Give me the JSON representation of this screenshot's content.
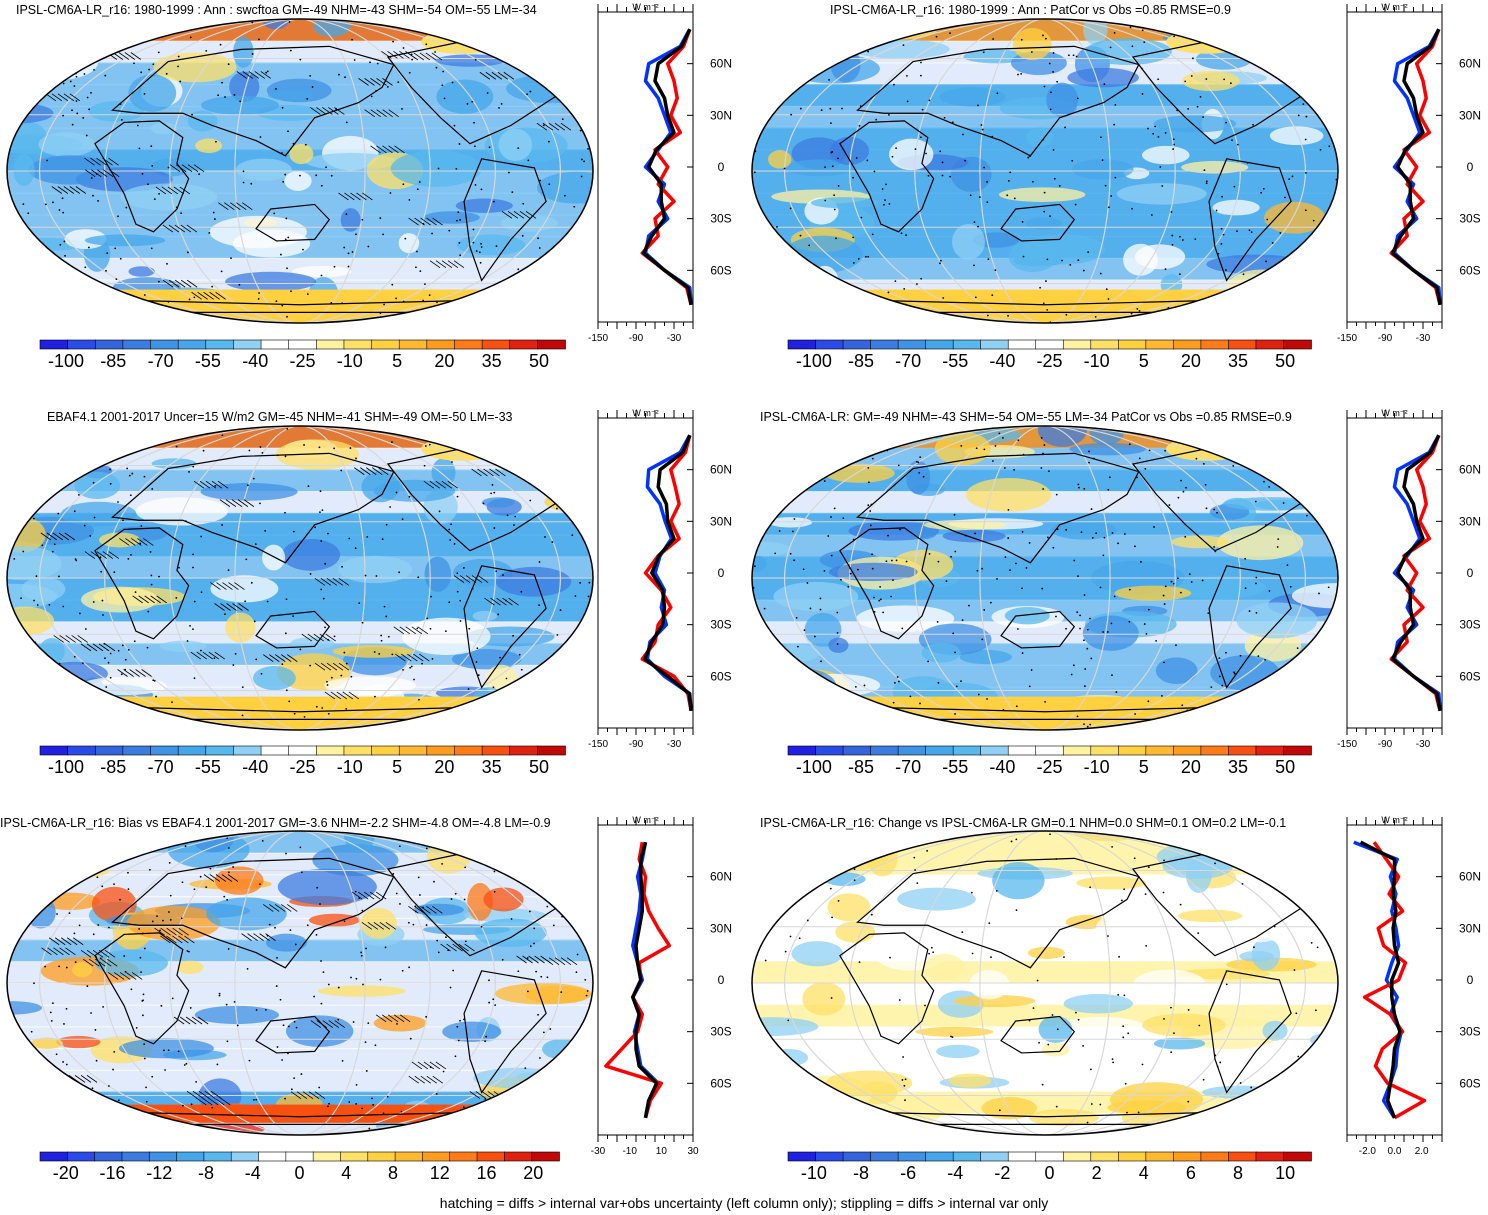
{
  "footer": "hatching = diffs > internal var+obs uncertainty (left column only); stippling = diffs > internal var only",
  "colors": {
    "scale_main": [
      "#2020e0",
      "#2a4be8",
      "#3464dc",
      "#3c7ce0",
      "#3f92e4",
      "#45a7ea",
      "#58b8ee",
      "#8fd0f4",
      "#ffffff",
      "#ffffff",
      "#fff2a0",
      "#ffe066",
      "#ffd040",
      "#ffb830",
      "#ff9c20",
      "#ff7a18",
      "#f85010",
      "#e02010",
      "#c00808"
    ],
    "scale_diff": [
      "#2020e0",
      "#2a4be8",
      "#3464dc",
      "#3c7ce0",
      "#3f92e4",
      "#45a7ea",
      "#58b8ee",
      "#8fd0f4",
      "#ffffff",
      "#ffffff",
      "#fff2a0",
      "#ffe066",
      "#ffd040",
      "#ffb830",
      "#ff9c20",
      "#ff7a18",
      "#f85010",
      "#e02010",
      "#c00808"
    ],
    "model_line": "#0033ff",
    "obs_line": "#ff0000",
    "ref_line": "#000000"
  },
  "chart_data": [
    {
      "type": "heatmap",
      "title": "IPSL-CM6A-LR_r16: 1980-1999 : Ann : swcftoa GM=-49 NHM=-43 SHM=-54 OM=-55 LM=-34",
      "colorbar_labels": [
        "-100",
        "-85",
        "-70",
        "-55",
        "-40",
        "-25",
        "-10",
        "5",
        "20",
        "35",
        "50"
      ],
      "colorbar_range": [
        -105,
        55
      ],
      "hatching": true,
      "stippling": true,
      "zonal_mean": {
        "unit": "W m⁻²",
        "xticks": [
          "-150",
          "-90",
          "-30"
        ],
        "xlim": [
          -150,
          0
        ],
        "lat_ticks": [
          "60N",
          "30N",
          "0",
          "30S",
          "60S"
        ],
        "series": [
          {
            "color": "blue",
            "lat": [
              80,
              70,
              60,
              50,
              40,
              30,
              20,
              10,
              0,
              -10,
              -20,
              -30,
              -40,
              -50,
              -60,
              -70,
              -80
            ],
            "values": [
              -5,
              -20,
              -70,
              -75,
              -55,
              -45,
              -35,
              -55,
              -75,
              -45,
              -55,
              -40,
              -70,
              -75,
              -45,
              -5,
              -3
            ]
          },
          {
            "color": "red",
            "lat": [
              80,
              70,
              60,
              50,
              40,
              30,
              20,
              10,
              0,
              -10,
              -20,
              -30,
              -40,
              -50,
              -60,
              -70,
              -80
            ],
            "values": [
              -5,
              -15,
              -40,
              -30,
              -25,
              -35,
              -20,
              -60,
              -40,
              -55,
              -30,
              -60,
              -55,
              -80,
              -45,
              -10,
              -3
            ]
          },
          {
            "color": "black",
            "lat": [
              80,
              70,
              60,
              50,
              40,
              30,
              20,
              10,
              0,
              -10,
              -20,
              -30,
              -40,
              -50,
              -60,
              -70,
              -80
            ],
            "values": [
              -5,
              -18,
              -55,
              -60,
              -45,
              -40,
              -30,
              -58,
              -70,
              -50,
              -50,
              -45,
              -65,
              -78,
              -45,
              -8,
              -3
            ]
          }
        ]
      }
    },
    {
      "type": "heatmap",
      "title": "IPSL-CM6A-LR_r16: 1980-1999 : Ann : PatCor vs Obs =0.85 RMSE=0.9",
      "colorbar_labels": [
        "-100",
        "-85",
        "-70",
        "-55",
        "-40",
        "-25",
        "-10",
        "5",
        "20",
        "35",
        "50"
      ],
      "colorbar_range": [
        -105,
        55
      ],
      "hatching": false,
      "stippling": true,
      "zonal_mean": {
        "unit": "W m⁻²",
        "xticks": [
          "-150",
          "-90",
          "-30"
        ],
        "xlim": [
          -150,
          0
        ],
        "lat_ticks": [
          "60N",
          "30N",
          "0",
          "30S",
          "60S"
        ],
        "series": [
          {
            "color": "blue",
            "lat": [
              80,
              70,
              60,
              50,
              40,
              30,
              20,
              10,
              0,
              -10,
              -20,
              -30,
              -40,
              -50,
              -60,
              -70,
              -80
            ],
            "values": [
              -5,
              -20,
              -70,
              -75,
              -55,
              -45,
              -35,
              -55,
              -75,
              -45,
              -55,
              -40,
              -70,
              -75,
              -45,
              -5,
              -3
            ]
          },
          {
            "color": "red",
            "lat": [
              80,
              70,
              60,
              50,
              40,
              30,
              20,
              10,
              0,
              -10,
              -20,
              -30,
              -40,
              -50,
              -60,
              -70,
              -80
            ],
            "values": [
              -5,
              -15,
              -40,
              -30,
              -25,
              -35,
              -20,
              -60,
              -40,
              -55,
              -30,
              -60,
              -55,
              -80,
              -45,
              -10,
              -3
            ]
          },
          {
            "color": "black",
            "lat": [
              80,
              70,
              60,
              50,
              40,
              30,
              20,
              10,
              0,
              -10,
              -20,
              -30,
              -40,
              -50,
              -60,
              -70,
              -80
            ],
            "values": [
              -5,
              -18,
              -55,
              -60,
              -45,
              -40,
              -30,
              -58,
              -70,
              -50,
              -50,
              -45,
              -65,
              -78,
              -45,
              -8,
              -3
            ]
          }
        ]
      }
    },
    {
      "type": "heatmap",
      "title": "EBAF4.1 2001-2017 Uncer=15 W/m2 GM=-45 NHM=-41 SHM=-49 OM=-50 LM=-33",
      "colorbar_labels": [
        "-100",
        "-85",
        "-70",
        "-55",
        "-40",
        "-25",
        "-10",
        "5",
        "20",
        "35",
        "50"
      ],
      "colorbar_range": [
        -105,
        55
      ],
      "hatching": true,
      "stippling": true,
      "zonal_mean": {
        "unit": "W m⁻²",
        "xticks": [
          "-150",
          "-90",
          "-30"
        ],
        "xlim": [
          -150,
          0
        ],
        "lat_ticks": [
          "60N",
          "30N",
          "0",
          "30S",
          "60S"
        ],
        "series": [
          {
            "color": "blue",
            "lat": [
              80,
              70,
              60,
              50,
              40,
              30,
              20,
              10,
              0,
              -10,
              -20,
              -30,
              -40,
              -50,
              -60,
              -70,
              -80
            ],
            "values": [
              -5,
              -20,
              -70,
              -72,
              -52,
              -44,
              -34,
              -52,
              -60,
              -45,
              -50,
              -42,
              -68,
              -72,
              -45,
              -5,
              -3
            ]
          },
          {
            "color": "red",
            "lat": [
              80,
              70,
              60,
              50,
              40,
              30,
              20,
              10,
              0,
              -10,
              -20,
              -30,
              -40,
              -50,
              -60,
              -70,
              -80
            ],
            "values": [
              -5,
              -12,
              -35,
              -28,
              -22,
              -35,
              -22,
              -55,
              -75,
              -50,
              -35,
              -55,
              -60,
              -80,
              -30,
              -8,
              -3
            ]
          },
          {
            "color": "black",
            "lat": [
              80,
              70,
              60,
              50,
              40,
              30,
              20,
              10,
              0,
              -10,
              -20,
              -30,
              -40,
              -50,
              -60,
              -70,
              -80
            ],
            "values": [
              -5,
              -16,
              -52,
              -55,
              -42,
              -40,
              -30,
              -54,
              -65,
              -48,
              -45,
              -48,
              -65,
              -76,
              -40,
              -6,
              -3
            ]
          }
        ]
      }
    },
    {
      "type": "heatmap",
      "title": "IPSL-CM6A-LR: GM=-49 NHM=-43 SHM=-54 OM=-55 LM=-34 PatCor vs Obs =0.85 RMSE=0.9",
      "colorbar_labels": [
        "-100",
        "-85",
        "-70",
        "-55",
        "-40",
        "-25",
        "-10",
        "5",
        "20",
        "35",
        "50"
      ],
      "colorbar_range": [
        -105,
        55
      ],
      "hatching": false,
      "stippling": true,
      "zonal_mean": {
        "unit": "W m⁻²",
        "xticks": [
          "-150",
          "-90",
          "-30"
        ],
        "xlim": [
          -150,
          0
        ],
        "lat_ticks": [
          "60N",
          "30N",
          "0",
          "30S",
          "60S"
        ],
        "series": [
          {
            "color": "blue",
            "lat": [
              80,
              70,
              60,
              50,
              40,
              30,
              20,
              10,
              0,
              -10,
              -20,
              -30,
              -40,
              -50,
              -60,
              -70,
              -80
            ],
            "values": [
              -5,
              -20,
              -70,
              -75,
              -55,
              -45,
              -35,
              -55,
              -75,
              -45,
              -55,
              -40,
              -70,
              -75,
              -45,
              -5,
              -3
            ]
          },
          {
            "color": "red",
            "lat": [
              80,
              70,
              60,
              50,
              40,
              30,
              20,
              10,
              0,
              -10,
              -20,
              -30,
              -40,
              -50,
              -60,
              -70,
              -80
            ],
            "values": [
              -5,
              -15,
              -40,
              -30,
              -25,
              -35,
              -20,
              -60,
              -40,
              -55,
              -30,
              -60,
              -55,
              -80,
              -45,
              -10,
              -3
            ]
          },
          {
            "color": "black",
            "lat": [
              80,
              70,
              60,
              50,
              40,
              30,
              20,
              10,
              0,
              -10,
              -20,
              -30,
              -40,
              -50,
              -60,
              -70,
              -80
            ],
            "values": [
              -5,
              -18,
              -55,
              -60,
              -45,
              -40,
              -30,
              -58,
              -70,
              -50,
              -50,
              -45,
              -65,
              -78,
              -45,
              -8,
              -3
            ]
          }
        ]
      }
    },
    {
      "type": "heatmap",
      "title": "IPSL-CM6A-LR_r16: Bias vs EBAF4.1 2001-2017 GM=-3.6 NHM=-2.2 SHM=-4.8 OM=-4.8 LM=-0.9",
      "colorbar_labels": [
        "-20",
        "-16",
        "-12",
        "-8",
        "-4",
        "0",
        "4",
        "8",
        "12",
        "16",
        "20"
      ],
      "colorbar_range": [
        -22,
        22
      ],
      "hatching": true,
      "stippling": true,
      "zonal_mean": {
        "unit": "W m⁻²",
        "xticks": [
          "-30",
          "-10",
          "10",
          "30"
        ],
        "xlim": [
          -30,
          30
        ],
        "lat_ticks": [
          "60N",
          "30N",
          "0",
          "30S",
          "60S"
        ],
        "series": [
          {
            "color": "blue",
            "lat": [
              80,
              70,
              60,
              50,
              40,
              30,
              20,
              10,
              0,
              -10,
              -20,
              -30,
              -40,
              -50,
              -60,
              -70,
              -80
            ],
            "values": [
              0,
              -2,
              -5,
              -3,
              -4,
              -6,
              -8,
              -5,
              -2,
              -8,
              -4,
              -7,
              -5,
              -3,
              8,
              2,
              0
            ]
          },
          {
            "color": "red",
            "lat": [
              80,
              70,
              60,
              50,
              40,
              30,
              20,
              10,
              0,
              -10,
              -20,
              -30,
              -40,
              -50,
              -60,
              -70,
              -80
            ],
            "values": [
              -2,
              -4,
              0,
              -1,
              2,
              8,
              15,
              -4,
              -3,
              -8,
              -2,
              -5,
              -15,
              -25,
              10,
              3,
              0
            ]
          },
          {
            "color": "black",
            "lat": [
              80,
              70,
              60,
              50,
              40,
              30,
              20,
              10,
              0,
              -10,
              -20,
              -30,
              -40,
              -50,
              -60,
              -70,
              -80
            ],
            "values": [
              0,
              -3,
              -3,
              -2,
              -2,
              -4,
              -6,
              -5,
              -3,
              -8,
              -4,
              -6,
              -6,
              -4,
              7,
              2,
              0
            ]
          }
        ]
      }
    },
    {
      "type": "heatmap",
      "title": "IPSL-CM6A-LR_r16: Change vs IPSL-CM6A-LR GM=0.1 NHM=0.0 SHM=0.1 OM=0.2 LM=-0.1",
      "colorbar_labels": [
        "-10",
        "-8",
        "-6",
        "-4",
        "-2",
        "0",
        "2",
        "4",
        "6",
        "8",
        "10"
      ],
      "colorbar_range": [
        -11,
        11
      ],
      "hatching": false,
      "stippling": true,
      "zonal_mean": {
        "unit": "W m⁻²",
        "xticks": [
          "-2.0",
          "0.0",
          "2.0"
        ],
        "xlim": [
          -3.5,
          3.5
        ],
        "lat_ticks": [
          "60N",
          "30N",
          "0",
          "30S",
          "60S"
        ],
        "series": [
          {
            "color": "blue",
            "lat": [
              80,
              70,
              60,
              50,
              40,
              30,
              20,
              10,
              0,
              -10,
              -20,
              -30,
              -40,
              -50,
              -60,
              -70,
              -80
            ],
            "values": [
              -3,
              0.2,
              -0.3,
              0.1,
              -0.2,
              0.1,
              0.3,
              -0.2,
              -0.6,
              0.2,
              -0.3,
              0.5,
              0.2,
              0.1,
              -0.3,
              -0.8,
              0
            ]
          },
          {
            "color": "red",
            "lat": [
              80,
              70,
              60,
              50,
              40,
              30,
              20,
              10,
              0,
              -10,
              -20,
              -30,
              -40,
              -50,
              -60,
              -70,
              -80
            ],
            "values": [
              -1.5,
              -0.6,
              0.3,
              -0.4,
              0.6,
              -1.2,
              -0.8,
              0.8,
              0.3,
              -2.2,
              -0.3,
              0.6,
              -0.9,
              -1.4,
              -0.5,
              2.2,
              0
            ]
          },
          {
            "color": "black",
            "lat": [
              80,
              70,
              60,
              50,
              40,
              30,
              20,
              10,
              0,
              -10,
              -20,
              -30,
              -40,
              -50,
              -60,
              -70,
              -80
            ],
            "values": [
              -2.5,
              0,
              0,
              -0.1,
              0.1,
              -0.1,
              0,
              0.3,
              -0.2,
              -0.2,
              0,
              0.4,
              0,
              -0.1,
              -0.3,
              -0.5,
              0
            ]
          }
        ]
      }
    }
  ]
}
